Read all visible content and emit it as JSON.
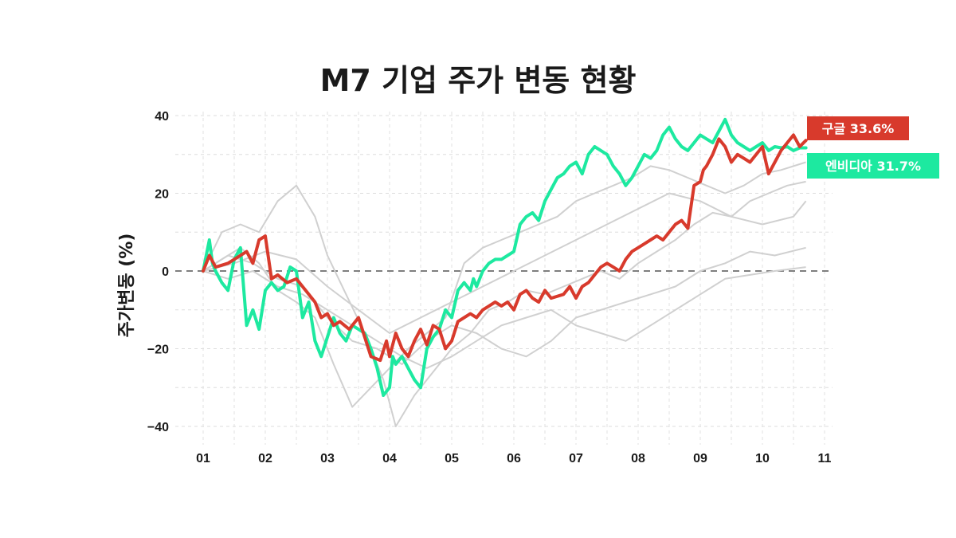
{
  "title": "M7 기업 주가 변동 현황",
  "chart_data": {
    "type": "line",
    "title": "M7 기업 주가 변동 현황",
    "xlabel": "",
    "ylabel": "주가변동 (%)",
    "xlim": [
      1,
      11
    ],
    "ylim": [
      -42,
      42
    ],
    "x_ticks": [
      "01",
      "02",
      "03",
      "04",
      "05",
      "06",
      "07",
      "08",
      "09",
      "10",
      "11"
    ],
    "y_ticks": [
      40,
      20,
      0,
      -20,
      -40
    ],
    "grid": true,
    "reference_line": 0,
    "legend": "end-of-line callouts (right)",
    "highlight": [
      {
        "name": "구글",
        "label": "구글 33.6%",
        "color": "#d83a2c",
        "x": [
          1.0,
          1.1,
          1.2,
          1.4,
          1.5,
          1.7,
          1.8,
          1.9,
          2.0,
          2.1,
          2.2,
          2.35,
          2.5,
          2.65,
          2.8,
          2.9,
          3.0,
          3.1,
          3.2,
          3.35,
          3.5,
          3.6,
          3.7,
          3.85,
          3.95,
          4.0,
          4.1,
          4.2,
          4.3,
          4.4,
          4.5,
          4.6,
          4.7,
          4.8,
          4.9,
          5.0,
          5.1,
          5.2,
          5.3,
          5.4,
          5.5,
          5.6,
          5.7,
          5.8,
          5.9,
          6.0,
          6.1,
          6.2,
          6.3,
          6.4,
          6.5,
          6.6,
          6.8,
          6.9,
          7.0,
          7.1,
          7.2,
          7.3,
          7.4,
          7.5,
          7.6,
          7.7,
          7.8,
          7.9,
          8.0,
          8.1,
          8.2,
          8.3,
          8.4,
          8.5,
          8.6,
          8.7,
          8.8,
          8.9,
          9.0,
          9.05,
          9.1,
          9.2,
          9.3,
          9.4,
          9.5,
          9.6,
          9.7,
          9.8,
          9.9,
          10.0,
          10.1,
          10.2,
          10.3,
          10.4,
          10.5,
          10.6,
          10.7
        ],
        "y": [
          0,
          4,
          1,
          2,
          3,
          5,
          2,
          8,
          9,
          -2,
          -1,
          -3,
          -2,
          -5,
          -8,
          -12,
          -11,
          -14,
          -13,
          -15,
          -12,
          -17,
          -22,
          -23,
          -18,
          -22,
          -16,
          -20,
          -22,
          -18,
          -15,
          -19,
          -14,
          -15,
          -20,
          -18,
          -13,
          -12,
          -11,
          -12,
          -10,
          -9,
          -8,
          -9,
          -8,
          -10,
          -6,
          -5,
          -7,
          -8,
          -5,
          -7,
          -6,
          -4,
          -7,
          -4,
          -3,
          -1,
          1,
          2,
          1,
          0,
          3,
          5,
          6,
          7,
          8,
          9,
          8,
          10,
          12,
          13,
          11,
          22,
          23,
          26,
          27,
          30,
          34,
          32,
          28,
          30,
          29,
          28,
          30,
          32,
          25,
          28,
          31,
          33,
          35,
          32,
          33.6
        ]
      },
      {
        "name": "엔비디아",
        "label": "엔비디아 31.7%",
        "color": "#1de9a0",
        "x": [
          1.0,
          1.1,
          1.15,
          1.2,
          1.3,
          1.4,
          1.5,
          1.6,
          1.7,
          1.8,
          1.9,
          2.0,
          2.1,
          2.2,
          2.3,
          2.4,
          2.5,
          2.6,
          2.7,
          2.8,
          2.9,
          3.0,
          3.1,
          3.2,
          3.3,
          3.4,
          3.5,
          3.6,
          3.7,
          3.8,
          3.9,
          4.0,
          4.05,
          4.1,
          4.2,
          4.3,
          4.4,
          4.5,
          4.6,
          4.7,
          4.8,
          4.9,
          5.0,
          5.1,
          5.2,
          5.3,
          5.35,
          5.4,
          5.5,
          5.6,
          5.7,
          5.8,
          5.9,
          6.0,
          6.1,
          6.2,
          6.3,
          6.4,
          6.5,
          6.6,
          6.7,
          6.8,
          6.9,
          7.0,
          7.1,
          7.2,
          7.3,
          7.4,
          7.5,
          7.6,
          7.7,
          7.8,
          7.9,
          8.0,
          8.1,
          8.2,
          8.3,
          8.4,
          8.5,
          8.6,
          8.7,
          8.8,
          8.9,
          9.0,
          9.1,
          9.2,
          9.3,
          9.4,
          9.5,
          9.6,
          9.7,
          9.8,
          9.9,
          10.0,
          10.1,
          10.2,
          10.3,
          10.4,
          10.5,
          10.6,
          10.7
        ],
        "y": [
          0,
          8,
          2,
          0,
          -3,
          -5,
          3,
          6,
          -14,
          -10,
          -15,
          -5,
          -3,
          -5,
          -4,
          1,
          0,
          -12,
          -8,
          -18,
          -22,
          -17,
          -12,
          -16,
          -18,
          -14,
          -15,
          -16,
          -20,
          -25,
          -32,
          -30,
          -22,
          -24,
          -22,
          -25,
          -28,
          -30,
          -20,
          -17,
          -15,
          -10,
          -12,
          -5,
          -3,
          -5,
          -2,
          -4,
          0,
          2,
          3,
          3,
          4,
          5,
          12,
          14,
          15,
          13,
          18,
          21,
          24,
          25,
          27,
          28,
          25,
          30,
          32,
          31,
          30,
          27,
          25,
          22,
          24,
          27,
          30,
          29,
          31,
          35,
          37,
          34,
          32,
          31,
          33,
          35,
          34,
          33,
          36,
          39,
          35,
          33,
          32,
          31,
          32,
          33,
          31,
          32,
          31.7,
          32,
          31,
          31.7,
          31.7
        ]
      }
    ],
    "background_series": [
      {
        "x": [
          1.0,
          1.3,
          1.6,
          1.9,
          2.2,
          2.5,
          2.8,
          3.0,
          3.3,
          3.6,
          3.9,
          4.1,
          4.4,
          4.7,
          5.0,
          5.3,
          5.6,
          5.9,
          6.2,
          6.5,
          6.8,
          7.1,
          7.4,
          7.7,
          8.0,
          8.3,
          8.6,
          8.9,
          9.2,
          9.5,
          9.8,
          10.1,
          10.4,
          10.7
        ],
        "y": [
          0,
          10,
          12,
          10,
          18,
          22,
          14,
          4,
          -6,
          -16,
          -28,
          -40,
          -32,
          -26,
          -20,
          -16,
          -10,
          -8,
          -5,
          -6,
          -4,
          -2,
          0,
          -2,
          2,
          5,
          8,
          12,
          15,
          14,
          18,
          20,
          22,
          23
        ]
      },
      {
        "x": [
          1.0,
          1.3,
          1.6,
          1.9,
          2.2,
          2.5,
          2.8,
          3.1,
          3.4,
          3.7,
          4.0,
          4.3,
          4.6,
          4.9,
          5.2,
          5.5,
          5.8,
          6.1,
          6.4,
          6.7,
          7.0,
          7.3,
          7.6,
          7.9,
          8.2,
          8.5,
          8.8,
          9.1,
          9.4,
          9.7,
          10.0,
          10.3,
          10.7
        ],
        "y": [
          0,
          3,
          6,
          2,
          -5,
          -8,
          -12,
          -24,
          -35,
          -30,
          -25,
          -20,
          -16,
          -12,
          2,
          6,
          8,
          10,
          12,
          14,
          18,
          20,
          22,
          24,
          27,
          26,
          24,
          22,
          20,
          22,
          25,
          26,
          28
        ]
      },
      {
        "x": [
          1.0,
          1.4,
          1.8,
          2.2,
          2.6,
          3.0,
          3.4,
          3.8,
          4.2,
          4.6,
          5.0,
          5.4,
          5.8,
          6.2,
          6.6,
          7.0,
          7.4,
          7.8,
          8.2,
          8.6,
          9.0,
          9.4,
          9.8,
          10.2,
          10.7
        ],
        "y": [
          0,
          -2,
          0,
          -4,
          -6,
          -10,
          -14,
          -18,
          -22,
          -25,
          -22,
          -18,
          -14,
          -12,
          -10,
          -14,
          -16,
          -18,
          -14,
          -10,
          -6,
          -2,
          -1,
          0,
          1
        ]
      },
      {
        "x": [
          1.0,
          1.4,
          1.8,
          2.2,
          2.6,
          3.0,
          3.4,
          3.8,
          4.2,
          4.6,
          5.0,
          5.4,
          5.8,
          6.2,
          6.6,
          7.0,
          7.4,
          7.8,
          8.2,
          8.6,
          9.0,
          9.4,
          9.8,
          10.2,
          10.7
        ],
        "y": [
          0,
          4,
          2,
          -2,
          -4,
          -12,
          -18,
          -20,
          -24,
          -18,
          -14,
          -16,
          -20,
          -22,
          -18,
          -12,
          -10,
          -8,
          -6,
          -4,
          0,
          2,
          5,
          4,
          6
        ]
      },
      {
        "x": [
          1.0,
          1.5,
          2.0,
          2.5,
          3.0,
          3.5,
          4.0,
          4.5,
          5.0,
          5.5,
          6.0,
          6.5,
          7.0,
          7.5,
          8.0,
          8.5,
          9.0,
          9.5,
          10.0,
          10.5,
          10.7
        ],
        "y": [
          0,
          2,
          5,
          3,
          -4,
          -10,
          -16,
          -12,
          -8,
          -4,
          0,
          4,
          8,
          12,
          16,
          20,
          18,
          14,
          12,
          14,
          18
        ]
      }
    ]
  }
}
